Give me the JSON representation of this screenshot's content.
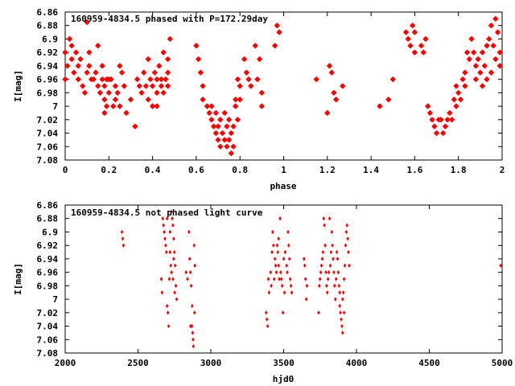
{
  "chart_data": [
    {
      "type": "scatter",
      "title": "160959-4834.5 phased with P=172.29day",
      "xlabel": "phase",
      "ylabel": "I[mag]",
      "xlim": [
        0,
        2
      ],
      "ylim": [
        7.08,
        6.86
      ],
      "y_inverted": true,
      "grid": false,
      "marker": "star",
      "color": "#ff0000",
      "xticks": [
        {
          "value": 0,
          "label": "0"
        },
        {
          "value": 0.2,
          "label": "0.2"
        },
        {
          "value": 0.4,
          "label": "0.4"
        },
        {
          "value": 0.6,
          "label": "0.6"
        },
        {
          "value": 0.8,
          "label": "0.8"
        },
        {
          "value": 1,
          "label": "1"
        },
        {
          "value": 1.2,
          "label": "1.2"
        },
        {
          "value": 1.4,
          "label": "1.4"
        },
        {
          "value": 1.6,
          "label": "1.6"
        },
        {
          "value": 1.8,
          "label": "1.8"
        },
        {
          "value": 2,
          "label": "2"
        }
      ],
      "yticks": [
        {
          "value": 6.86,
          "label": "6.86"
        },
        {
          "value": 6.88,
          "label": "6.88"
        },
        {
          "value": 6.9,
          "label": "6.9"
        },
        {
          "value": 6.92,
          "label": "6.92"
        },
        {
          "value": 6.94,
          "label": "6.94"
        },
        {
          "value": 6.96,
          "label": "6.96"
        },
        {
          "value": 6.98,
          "label": "6.98"
        },
        {
          "value": 7.0,
          "label": "7"
        },
        {
          "value": 7.02,
          "label": "7.02"
        },
        {
          "value": 7.04,
          "label": "7.04"
        },
        {
          "value": 7.06,
          "label": "7.06"
        },
        {
          "value": 7.08,
          "label": "7.08"
        }
      ],
      "points": [
        [
          0.0,
          6.92
        ],
        [
          0.01,
          6.94
        ],
        [
          0.0,
          6.96
        ],
        [
          0.02,
          6.9
        ],
        [
          0.03,
          6.93
        ],
        [
          0.03,
          6.91
        ],
        [
          0.04,
          6.95
        ],
        [
          0.05,
          6.92
        ],
        [
          0.06,
          6.94
        ],
        [
          0.06,
          6.96
        ],
        [
          0.07,
          6.93
        ],
        [
          0.08,
          6.97
        ],
        [
          0.09,
          6.98
        ],
        [
          0.1,
          6.95
        ],
        [
          0.11,
          6.92
        ],
        [
          0.11,
          6.94
        ],
        [
          0.12,
          6.96
        ],
        [
          0.1,
          6.875
        ],
        [
          0.13,
          6.96
        ],
        [
          0.14,
          6.95
        ],
        [
          0.15,
          6.91
        ],
        [
          0.15,
          6.97
        ],
        [
          0.16,
          6.98
        ],
        [
          0.17,
          6.96
        ],
        [
          0.17,
          6.94
        ],
        [
          0.18,
          6.99
        ],
        [
          0.18,
          6.97
        ],
        [
          0.19,
          6.96
        ],
        [
          0.19,
          7.0
        ],
        [
          0.2,
          6.98
        ],
        [
          0.2,
          6.96
        ],
        [
          0.21,
          6.96
        ],
        [
          0.22,
          7.0
        ],
        [
          0.23,
          6.99
        ],
        [
          0.23,
          6.97
        ],
        [
          0.24,
          6.98
        ],
        [
          0.25,
          7.0
        ],
        [
          0.25,
          6.94
        ],
        [
          0.26,
          6.95
        ],
        [
          0.27,
          6.97
        ],
        [
          0.18,
          7.01
        ],
        [
          0.28,
          7.01
        ],
        [
          0.3,
          6.99
        ],
        [
          0.32,
          7.03
        ],
        [
          0.33,
          6.96
        ],
        [
          0.34,
          6.97
        ],
        [
          0.35,
          6.98
        ],
        [
          0.36,
          6.95
        ],
        [
          0.37,
          6.97
        ],
        [
          0.38,
          6.99
        ],
        [
          0.38,
          6.93
        ],
        [
          0.39,
          6.96
        ],
        [
          0.4,
          6.97
        ],
        [
          0.41,
          6.95
        ],
        [
          0.42,
          6.98
        ],
        [
          0.42,
          6.96
        ],
        [
          0.43,
          6.94
        ],
        [
          0.44,
          6.96
        ],
        [
          0.44,
          6.97
        ],
        [
          0.45,
          6.98
        ],
        [
          0.45,
          6.92
        ],
        [
          0.46,
          6.96
        ],
        [
          0.47,
          6.95
        ],
        [
          0.47,
          6.93
        ],
        [
          0.48,
          6.9
        ],
        [
          0.4,
          7.0
        ],
        [
          0.42,
          7.0
        ],
        [
          0.47,
          6.97
        ],
        [
          0.6,
          6.91
        ],
        [
          0.61,
          6.93
        ],
        [
          0.62,
          6.95
        ],
        [
          0.63,
          6.97
        ],
        [
          0.63,
          6.99
        ],
        [
          0.65,
          7.0
        ],
        [
          0.66,
          7.01
        ],
        [
          0.67,
          7.02
        ],
        [
          0.67,
          7.0
        ],
        [
          0.68,
          7.03
        ],
        [
          0.69,
          7.04
        ],
        [
          0.69,
          7.01
        ],
        [
          0.7,
          7.05
        ],
        [
          0.7,
          7.03
        ],
        [
          0.71,
          7.06
        ],
        [
          0.71,
          7.02
        ],
        [
          0.72,
          7.04
        ],
        [
          0.73,
          7.05
        ],
        [
          0.73,
          7.01
        ],
        [
          0.74,
          7.03
        ],
        [
          0.74,
          7.06
        ],
        [
          0.75,
          7.05
        ],
        [
          0.75,
          7.02
        ],
        [
          0.76,
          7.07
        ],
        [
          0.76,
          7.04
        ],
        [
          0.77,
          7.06
        ],
        [
          0.77,
          7.03
        ],
        [
          0.78,
          7.0
        ],
        [
          0.78,
          6.99
        ],
        [
          0.79,
          7.02
        ],
        [
          0.79,
          6.96
        ],
        [
          0.8,
          6.99
        ],
        [
          0.8,
          6.97
        ],
        [
          0.82,
          6.93
        ],
        [
          0.83,
          6.95
        ],
        [
          0.84,
          6.96
        ],
        [
          0.85,
          6.97
        ],
        [
          0.87,
          6.91
        ],
        [
          0.88,
          6.96
        ],
        [
          0.89,
          6.93
        ],
        [
          0.9,
          6.98
        ],
        [
          0.9,
          7.0
        ],
        [
          0.96,
          6.91
        ],
        [
          0.97,
          6.88
        ],
        [
          0.98,
          6.89
        ],
        [
          1.15,
          6.96
        ],
        [
          1.2,
          7.01
        ],
        [
          1.21,
          6.94
        ],
        [
          1.22,
          6.95
        ],
        [
          1.23,
          6.98
        ],
        [
          1.24,
          6.99
        ],
        [
          1.27,
          6.97
        ],
        [
          1.44,
          7.0
        ],
        [
          1.48,
          6.99
        ],
        [
          1.5,
          6.96
        ],
        [
          1.56,
          6.89
        ],
        [
          1.57,
          6.9
        ],
        [
          1.58,
          6.91
        ],
        [
          1.59,
          6.88
        ],
        [
          1.6,
          6.89
        ],
        [
          1.6,
          6.92
        ],
        [
          1.63,
          6.91
        ],
        [
          1.64,
          6.92
        ],
        [
          1.65,
          6.9
        ],
        [
          1.66,
          7.0
        ],
        [
          1.67,
          7.01
        ],
        [
          1.68,
          7.02
        ],
        [
          1.69,
          7.03
        ],
        [
          1.7,
          7.04
        ],
        [
          1.71,
          7.02
        ],
        [
          1.72,
          7.02
        ],
        [
          1.73,
          7.04
        ],
        [
          1.74,
          7.03
        ],
        [
          1.75,
          7.02
        ],
        [
          1.76,
          7.01
        ],
        [
          1.77,
          7.02
        ],
        [
          1.78,
          6.99
        ],
        [
          1.79,
          6.97
        ],
        [
          1.79,
          7.0
        ],
        [
          1.8,
          6.98
        ],
        [
          1.81,
          6.99
        ],
        [
          1.82,
          6.96
        ],
        [
          1.83,
          6.95
        ],
        [
          1.83,
          6.97
        ],
        [
          1.84,
          6.92
        ],
        [
          1.85,
          6.93
        ],
        [
          1.86,
          6.9
        ],
        [
          1.87,
          6.92
        ],
        [
          1.88,
          6.94
        ],
        [
          1.89,
          6.93
        ],
        [
          1.9,
          6.95
        ],
        [
          1.91,
          6.92
        ],
        [
          1.91,
          6.97
        ],
        [
          1.92,
          6.94
        ],
        [
          1.93,
          6.96
        ],
        [
          1.94,
          6.9
        ],
        [
          1.95,
          6.88
        ],
        [
          1.96,
          6.91
        ],
        [
          1.97,
          6.93
        ],
        [
          1.98,
          6.89
        ],
        [
          1.99,
          6.92
        ],
        [
          1.99,
          6.94
        ],
        [
          1.97,
          6.87
        ],
        [
          1.93,
          6.91
        ],
        [
          1.88,
          6.96
        ],
        [
          1.95,
          6.95
        ]
      ]
    },
    {
      "type": "scatter",
      "title": "160959-4834.5 not phased light curve",
      "xlabel": "hjd0",
      "ylabel": "I[mag]",
      "xlim": [
        2000,
        5000
      ],
      "ylim": [
        7.08,
        6.86
      ],
      "y_inverted": true,
      "grid": false,
      "marker": "diamond",
      "color": "#ff0000",
      "xticks": [
        {
          "value": 2000,
          "label": "2000"
        },
        {
          "value": 2500,
          "label": "2500"
        },
        {
          "value": 3000,
          "label": "3000"
        },
        {
          "value": 3500,
          "label": "3500"
        },
        {
          "value": 4000,
          "label": "4000"
        },
        {
          "value": 4500,
          "label": "4500"
        },
        {
          "value": 5000,
          "label": "5000"
        }
      ],
      "yticks": [
        {
          "value": 6.86,
          "label": "6.86"
        },
        {
          "value": 6.88,
          "label": "6.88"
        },
        {
          "value": 6.9,
          "label": "6.9"
        },
        {
          "value": 6.92,
          "label": "6.92"
        },
        {
          "value": 6.94,
          "label": "6.94"
        },
        {
          "value": 6.96,
          "label": "6.96"
        },
        {
          "value": 6.98,
          "label": "6.98"
        },
        {
          "value": 7.0,
          "label": "7"
        },
        {
          "value": 7.02,
          "label": "7.02"
        },
        {
          "value": 7.04,
          "label": "7.04"
        },
        {
          "value": 7.06,
          "label": "7.06"
        },
        {
          "value": 7.08,
          "label": "7.08"
        }
      ],
      "points": [
        [
          2390,
          6.9
        ],
        [
          2395,
          6.91
        ],
        [
          2400,
          6.92
        ],
        [
          2660,
          6.97
        ],
        [
          2665,
          6.99
        ],
        [
          2670,
          6.88
        ],
        [
          2675,
          6.89
        ],
        [
          2680,
          6.9
        ],
        [
          2685,
          6.91
        ],
        [
          2690,
          6.92
        ],
        [
          2695,
          6.93
        ],
        [
          2700,
          7.01
        ],
        [
          2705,
          7.02
        ],
        [
          2710,
          7.04
        ],
        [
          2715,
          6.97
        ],
        [
          2720,
          6.93
        ],
        [
          2725,
          6.95
        ],
        [
          2730,
          6.87
        ],
        [
          2735,
          6.88
        ],
        [
          2740,
          6.89
        ],
        [
          2745,
          6.91
        ],
        [
          2750,
          6.93
        ],
        [
          2755,
          6.95
        ],
        [
          2760,
          6.98
        ],
        [
          2765,
          7.0
        ],
        [
          2700,
          6.88
        ],
        [
          2720,
          6.9
        ],
        [
          2730,
          6.96
        ],
        [
          2745,
          6.94
        ],
        [
          2740,
          6.97
        ],
        [
          2752,
          6.99
        ],
        [
          2830,
          6.96
        ],
        [
          2840,
          6.97
        ],
        [
          2850,
          6.9
        ],
        [
          2855,
          6.94
        ],
        [
          2860,
          6.96
        ],
        [
          2865,
          6.98
        ],
        [
          2870,
          7.04
        ],
        [
          2875,
          7.05
        ],
        [
          2878,
          7.06
        ],
        [
          2880,
          7.07
        ],
        [
          2885,
          6.92
        ],
        [
          2888,
          7.02
        ],
        [
          2890,
          6.95
        ],
        [
          2860,
          7.04
        ],
        [
          2872,
          7.01
        ],
        [
          3380,
          7.02
        ],
        [
          3385,
          7.03
        ],
        [
          3390,
          7.04
        ],
        [
          3395,
          6.97
        ],
        [
          3400,
          6.99
        ],
        [
          3410,
          6.96
        ],
        [
          3420,
          6.93
        ],
        [
          3425,
          6.9
        ],
        [
          3430,
          6.92
        ],
        [
          3440,
          6.94
        ],
        [
          3445,
          6.95
        ],
        [
          3450,
          6.96
        ],
        [
          3455,
          6.92
        ],
        [
          3460,
          6.93
        ],
        [
          3465,
          6.95
        ],
        [
          3470,
          6.97
        ],
        [
          3475,
          6.88
        ],
        [
          3480,
          6.96
        ],
        [
          3485,
          6.97
        ],
        [
          3490,
          6.98
        ],
        [
          3495,
          7.02
        ],
        [
          3500,
          6.94
        ],
        [
          3505,
          6.99
        ],
        [
          3510,
          6.93
        ],
        [
          3520,
          6.95
        ],
        [
          3525,
          6.96
        ],
        [
          3530,
          6.9
        ],
        [
          3535,
          6.92
        ],
        [
          3540,
          6.94
        ],
        [
          3545,
          6.97
        ],
        [
          3550,
          6.98
        ],
        [
          3555,
          6.99
        ],
        [
          3415,
          6.98
        ],
        [
          3435,
          6.97
        ],
        [
          3465,
          6.91
        ],
        [
          3640,
          6.94
        ],
        [
          3645,
          6.95
        ],
        [
          3650,
          6.97
        ],
        [
          3655,
          7.0
        ],
        [
          3660,
          6.98
        ],
        [
          3740,
          7.02
        ],
        [
          3745,
          6.98
        ],
        [
          3750,
          6.97
        ],
        [
          3755,
          6.96
        ],
        [
          3760,
          6.95
        ],
        [
          3765,
          6.94
        ],
        [
          3770,
          6.93
        ],
        [
          3775,
          6.88
        ],
        [
          3780,
          6.89
        ],
        [
          3785,
          6.92
        ],
        [
          3790,
          6.96
        ],
        [
          3795,
          6.98
        ],
        [
          3800,
          6.99
        ],
        [
          3805,
          6.97
        ],
        [
          3810,
          6.96
        ],
        [
          3815,
          6.88
        ],
        [
          3820,
          6.95
        ],
        [
          3825,
          6.93
        ],
        [
          3830,
          6.9
        ],
        [
          3835,
          6.92
        ],
        [
          3840,
          6.94
        ],
        [
          3845,
          6.96
        ],
        [
          3850,
          6.98
        ],
        [
          3855,
          7.0
        ],
        [
          3860,
          6.97
        ],
        [
          3865,
          6.93
        ],
        [
          3870,
          6.94
        ],
        [
          3875,
          6.96
        ],
        [
          3880,
          6.98
        ],
        [
          3885,
          7.01
        ],
        [
          3890,
          7.02
        ],
        [
          3895,
          7.03
        ],
        [
          3900,
          7.04
        ],
        [
          3905,
          7.05
        ],
        [
          3910,
          6.99
        ],
        [
          3915,
          6.97
        ],
        [
          3920,
          6.95
        ],
        [
          3925,
          6.92
        ],
        [
          3930,
          6.9
        ],
        [
          3935,
          6.89
        ],
        [
          3940,
          6.91
        ],
        [
          3945,
          6.93
        ],
        [
          3950,
          6.95
        ],
        [
          3905,
          7.0
        ],
        [
          3915,
          7.02
        ],
        [
          3885,
          6.99
        ],
        [
          4990,
          6.95
        ]
      ]
    }
  ]
}
